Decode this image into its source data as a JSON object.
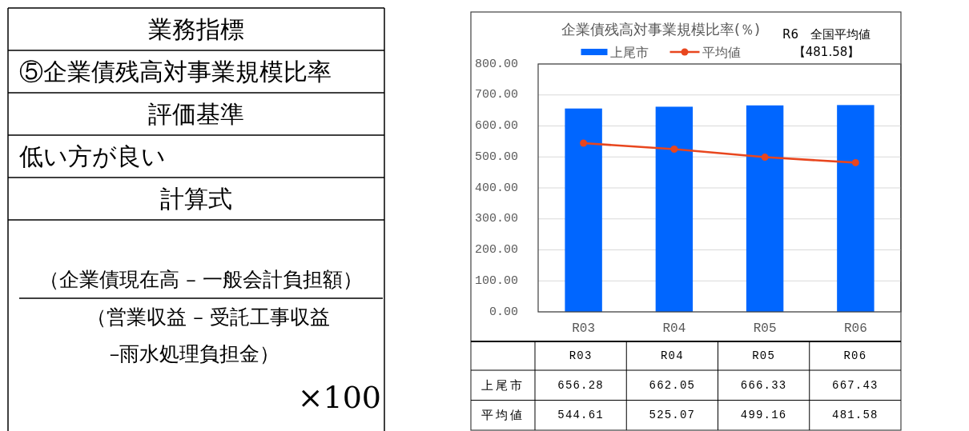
{
  "chart_data": [
    {
      "type": "other",
      "annotations": [
        "業務指標",
        "⑤企業債残高対事業規模比率",
        "評価基準",
        "低い方が良い",
        "計算式",
        "（企業債現在高 – 一般会計負担額）",
        "（営業収益 – 受託工事収益",
        "–雨水処理負担金）",
        "×100"
      ]
    },
    {
      "type": "bar",
      "title": "企業債残高対事業規模比率(％)",
      "annotations": [
        "R6　全国平均値",
        "【481.58】"
      ],
      "categories": [
        "R03",
        "R04",
        "R05",
        "R06"
      ],
      "series": [
        {
          "name": "上尾市",
          "color": "#0066ff",
          "values": [
            656.28,
            662.05,
            666.33,
            667.43
          ]
        },
        {
          "name": "平均値",
          "type": "line",
          "color": "#e8461e",
          "values": [
            544.61,
            525.07,
            499.16,
            481.58
          ]
        }
      ],
      "ylim": [
        0,
        800
      ],
      "yticks": [
        {
          "value": 0,
          "label": "0.00"
        },
        {
          "value": 100,
          "label": "100.00"
        },
        {
          "value": 200,
          "label": "200.00"
        },
        {
          "value": 300,
          "label": "300.00"
        },
        {
          "value": 400,
          "label": "400.00"
        },
        {
          "value": 500,
          "label": "500.00"
        },
        {
          "value": 600,
          "label": "600.00"
        },
        {
          "value": 700,
          "label": "700.00"
        },
        {
          "value": 800,
          "label": "800.00"
        }
      ],
      "grid": "y",
      "legend": "top",
      "marker": "circle",
      "data_labels": true
    }
  ]
}
